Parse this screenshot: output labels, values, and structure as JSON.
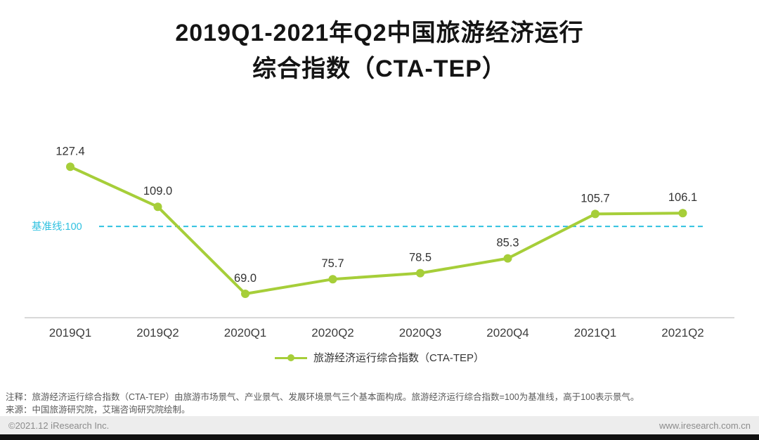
{
  "title": {
    "line1": "2019Q1-2021年Q2中国旅游经济运行",
    "line2": "综合指数（CTA-TEP）"
  },
  "chart_data": {
    "type": "line",
    "title": "2019Q1-2021年Q2中国旅游经济运行综合指数（CTA-TEP）",
    "categories": [
      "2019Q1",
      "2019Q2",
      "2020Q1",
      "2020Q2",
      "2020Q3",
      "2020Q4",
      "2021Q1",
      "2021Q2"
    ],
    "series": [
      {
        "name": "旅游经济运行综合指数（CTA-TEP）",
        "values": [
          127.4,
          109.0,
          69.0,
          75.7,
          78.5,
          85.3,
          105.7,
          106.1
        ]
      }
    ],
    "baseline": {
      "value": 100,
      "label": "基准线:100"
    },
    "ylim": [
      58,
      133
    ],
    "grid": false,
    "legend_position": "bottom",
    "data_labels": true,
    "colors": {
      "line": "#a6ce39",
      "baseline": "#2fc1e0",
      "axis": "#cccccc",
      "label": "#333333"
    }
  },
  "legend": {
    "label": "旅游经济运行综合指数（CTA-TEP）"
  },
  "notes": {
    "annotation": "注释：旅游经济运行综合指数（CTA-TEP）由旅游市场景气、产业景气、发展环境景气三个基本面构成。旅游经济运行综合指数=100为基准线，高于100表示景气。",
    "source": "来源：中国旅游研究院，艾瑞咨询研究院绘制。"
  },
  "footer": {
    "copyright": "©2021.12 iResearch Inc.",
    "website": "www.iresearch.com.cn"
  }
}
